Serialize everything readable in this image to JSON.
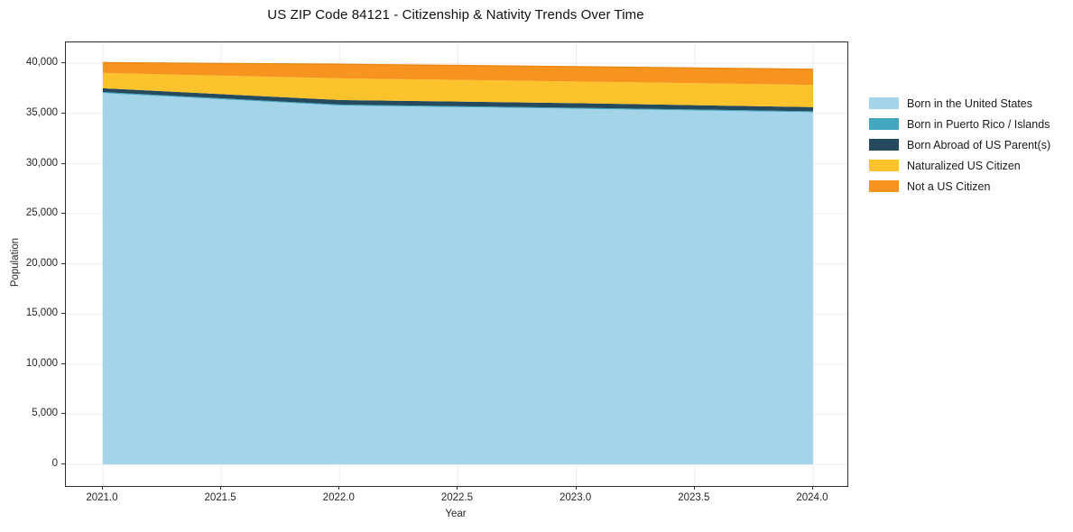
{
  "chart_data": {
    "type": "area",
    "stacked": true,
    "title": "US ZIP Code 84121 - Citizenship & Nativity Trends Over Time",
    "xlabel": "Year",
    "ylabel": "Population",
    "x": [
      2021.0,
      2022.0,
      2023.0,
      2024.0
    ],
    "series": [
      {
        "name": "Born in the United States",
        "color": "#A4D4EA",
        "values": [
          37050,
          35800,
          35480,
          35130
        ]
      },
      {
        "name": "Born in Puerto Rico / Islands",
        "color": "#41A7BF",
        "values": [
          100,
          100,
          100,
          100
        ]
      },
      {
        "name": "Born Abroad of US Parent(s)",
        "color": "#254A5D",
        "values": [
          370,
          450,
          460,
          410
        ]
      },
      {
        "name": "Naturalized US Citizen",
        "color": "#FCC32D",
        "values": [
          1530,
          2160,
          2160,
          2220
        ]
      },
      {
        "name": "Not a US Citizen",
        "color": "#F7941F",
        "values": [
          1030,
          1410,
          1470,
          1560
        ]
      }
    ],
    "stack_totals": [
      40080,
      39920,
      39670,
      39420
    ],
    "xticks": [
      {
        "v": 2021.0,
        "label": "2021.0"
      },
      {
        "v": 2021.5,
        "label": "2021.5"
      },
      {
        "v": 2022.0,
        "label": "2022.0"
      },
      {
        "v": 2022.5,
        "label": "2022.5"
      },
      {
        "v": 2023.0,
        "label": "2023.0"
      },
      {
        "v": 2023.5,
        "label": "2023.5"
      },
      {
        "v": 2024.0,
        "label": "2024.0"
      }
    ],
    "yticks": [
      {
        "v": 0,
        "label": "0"
      },
      {
        "v": 5000,
        "label": "5,000"
      },
      {
        "v": 10000,
        "label": "10,000"
      },
      {
        "v": 15000,
        "label": "15,000"
      },
      {
        "v": 20000,
        "label": "20,000"
      },
      {
        "v": 25000,
        "label": "25,000"
      },
      {
        "v": 30000,
        "label": "30,000"
      },
      {
        "v": 35000,
        "label": "35,000"
      },
      {
        "v": 40000,
        "label": "40,000"
      }
    ],
    "xlim": [
      2020.844,
      2024.145
    ],
    "ylim": [
      -2160,
      42100
    ],
    "grid": true,
    "legend_position": "right-outside",
    "top_edge_color": "#E98812",
    "background_color": "#ffffff",
    "spine_color": "#2e2e2e"
  }
}
